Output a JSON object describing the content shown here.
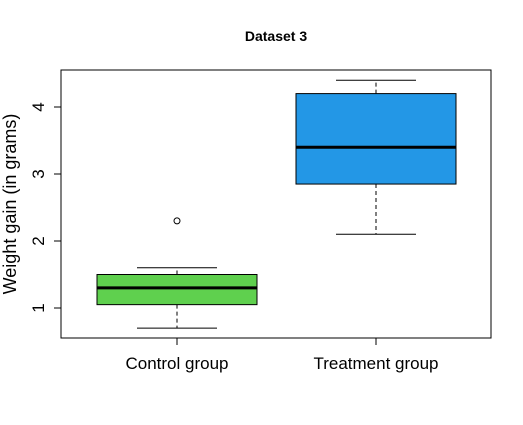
{
  "chart_data": {
    "type": "box",
    "title": "Dataset 3",
    "xlabel": "",
    "ylabel": "Weight gain (in grams)",
    "ylim": [
      0.5,
      4.55
    ],
    "yticks": [
      1,
      2,
      3,
      4
    ],
    "categories": [
      "Control group",
      "Treatment group"
    ],
    "boxes": [
      {
        "label": "Control group",
        "color": "#5fd04e",
        "whisker_low": 0.7,
        "q1": 1.05,
        "median": 1.3,
        "q3": 1.5,
        "whisker_high": 1.6,
        "outliers": [
          2.3
        ]
      },
      {
        "label": "Treatment group",
        "color": "#2397e6",
        "whisker_low": 2.1,
        "q1": 2.85,
        "median": 3.4,
        "q3": 4.2,
        "whisker_high": 4.4,
        "outliers": []
      }
    ]
  }
}
